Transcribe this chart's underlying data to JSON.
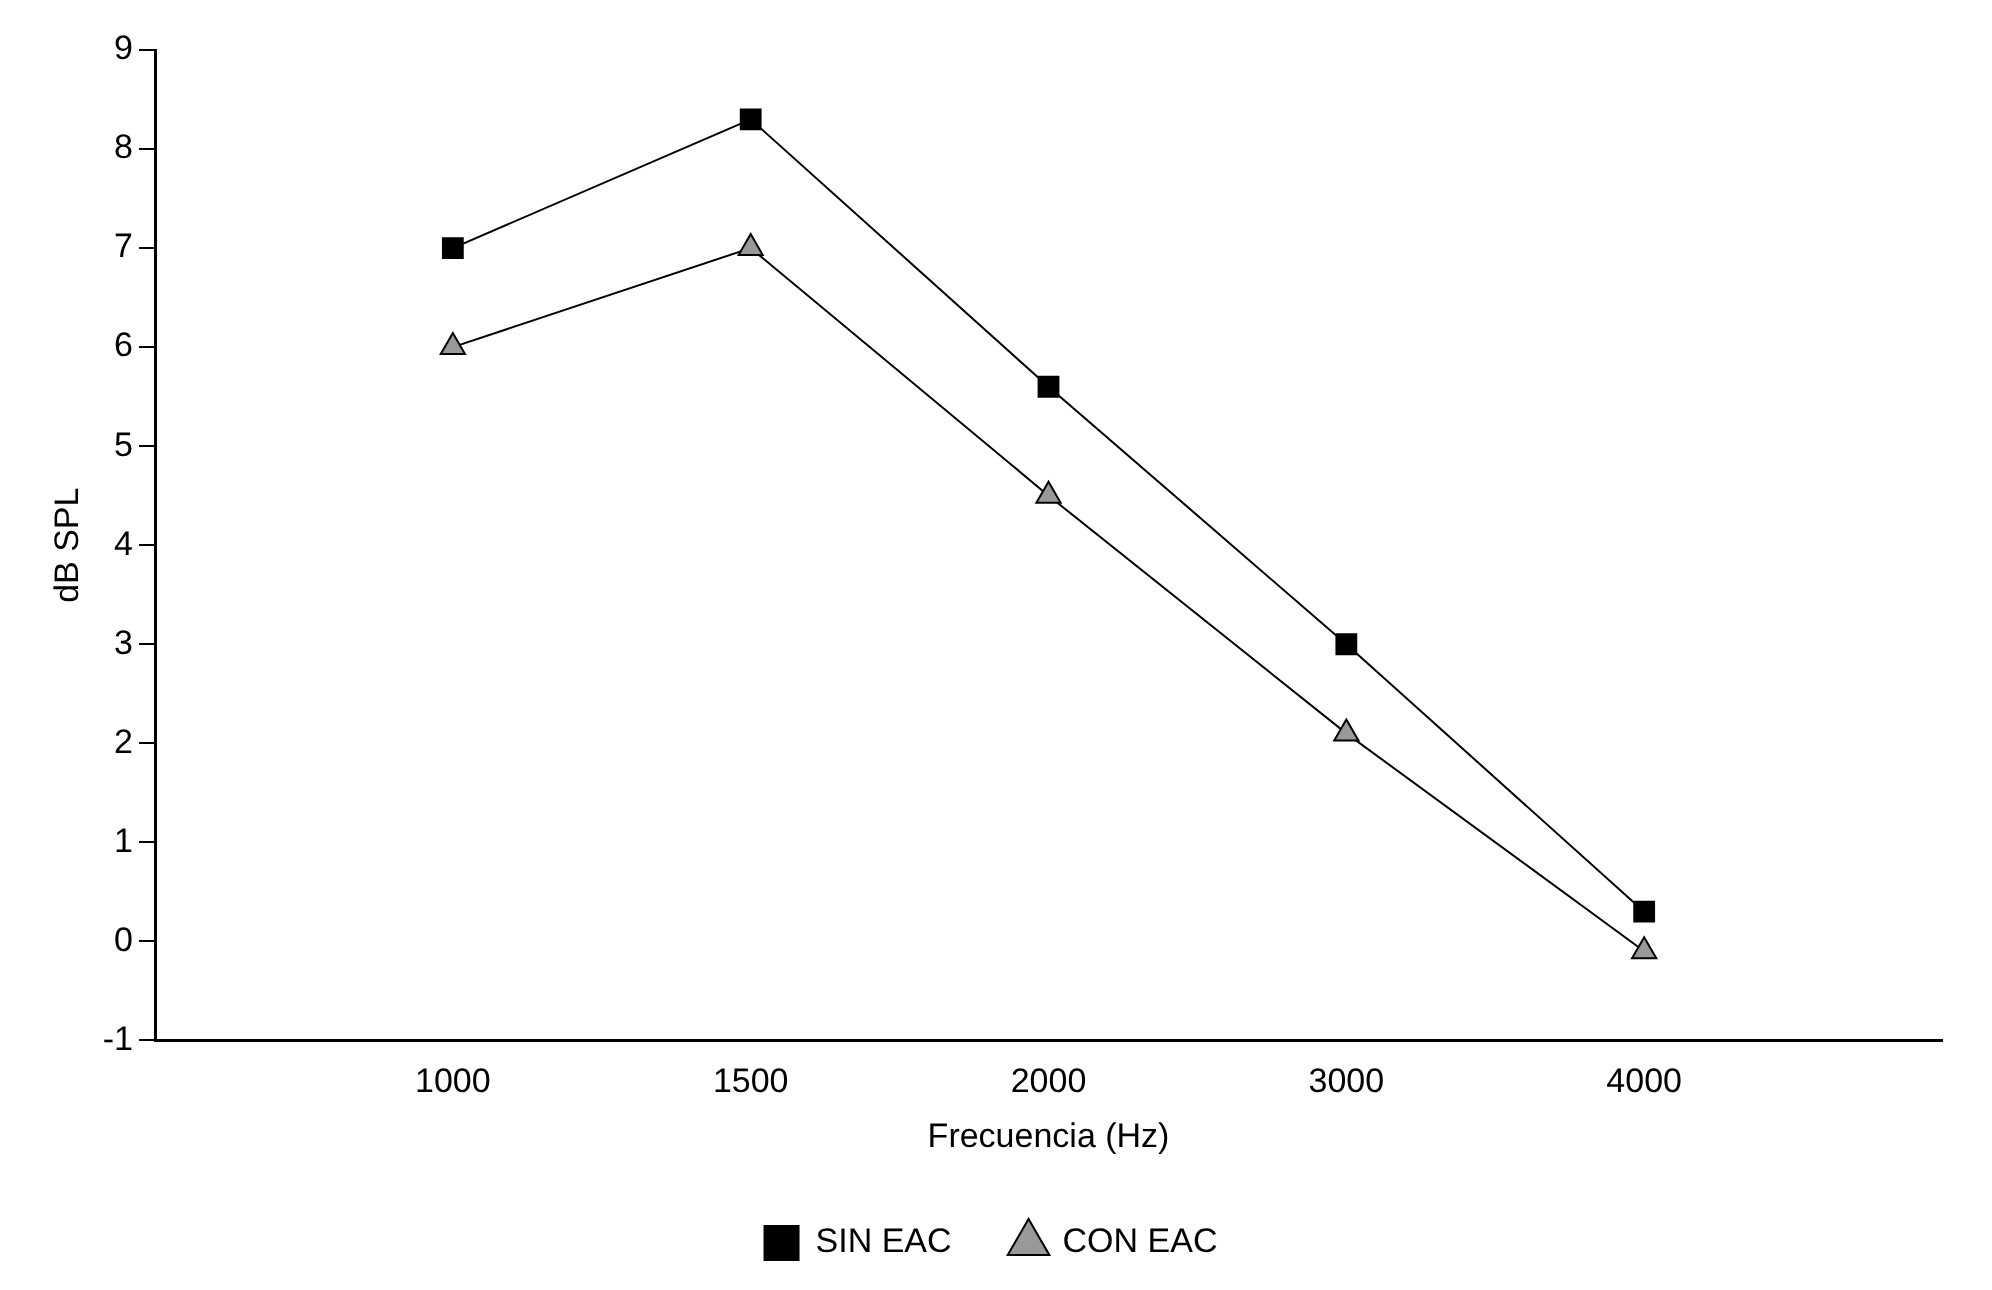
{
  "chart_data": {
    "type": "line",
    "xlabel": "Frecuencia (Hz)",
    "ylabel": "dB SPL",
    "categories": [
      "1000",
      "1500",
      "2000",
      "3000",
      "4000"
    ],
    "series": [
      {
        "name": "SIN EAC",
        "color": "#000000",
        "marker": "square",
        "values": [
          7.0,
          8.3,
          5.6,
          3.0,
          0.3
        ]
      },
      {
        "name": "CON EAC",
        "color": "#999999",
        "marker": "triangle",
        "values": [
          6.0,
          7.0,
          4.5,
          2.1,
          -0.1
        ]
      }
    ],
    "ylim": [
      -1,
      9
    ],
    "yticks": [
      -1,
      0,
      1,
      2,
      3,
      4,
      5,
      6,
      7,
      8,
      9
    ],
    "grid": false,
    "legend": "bottom",
    "line_style": "solid"
  }
}
